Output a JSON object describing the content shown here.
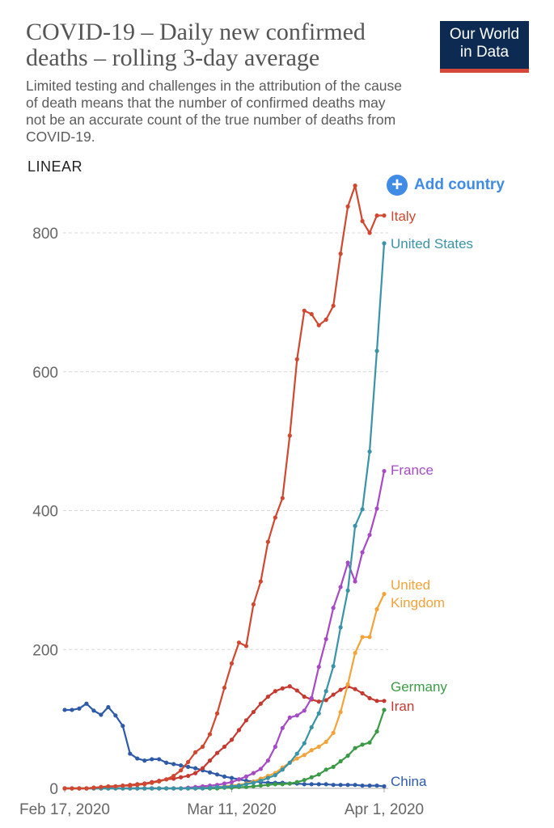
{
  "header": {
    "title": "COVID-19 – Daily new confirmed deaths – rolling 3-day average",
    "subtitle": "Limited testing and challenges in the attribution of the cause of death means that the number of confirmed deaths may not be an accurate count of the true number of deaths from COVID-19.",
    "logo_line1": "Our World",
    "logo_line2": "in Data",
    "scale_label": "LINEAR",
    "add_country": "Add country"
  },
  "colors": {
    "Italy": "#d0482f",
    "United States": "#3a93a6",
    "France": "#a64bc4",
    "United Kingdom": "#f2a33a",
    "Germany": "#3c9a47",
    "Iran": "#c53a30",
    "China": "#2e5aa8"
  },
  "chart_data": {
    "type": "line",
    "title": "COVID-19 – Daily new confirmed deaths – rolling 3-day average",
    "ylabel": "",
    "xlabel": "",
    "ylim": [
      0,
      870
    ],
    "yticks": [
      0,
      200,
      400,
      600,
      800
    ],
    "x_ticks": [
      {
        "index": 0,
        "label": "Feb 17, 2020"
      },
      {
        "index": 23,
        "label": "Mar 11, 2020"
      },
      {
        "index": 44,
        "label": "Apr 1, 2020"
      }
    ],
    "x_count": 45,
    "series": [
      {
        "name": "China",
        "label": [
          "China"
        ],
        "values": [
          113,
          113,
          115,
          122,
          112,
          106,
          117,
          105,
          90,
          50,
          43,
          40,
          42,
          42,
          37,
          35,
          33,
          31,
          29,
          26,
          23,
          20,
          17,
          15,
          13,
          11,
          10,
          9,
          8,
          8,
          8,
          7,
          7,
          6,
          6,
          6,
          6,
          5,
          5,
          5,
          5,
          4,
          4,
          4,
          3
        ]
      },
      {
        "name": "Iran",
        "label": [
          "Iran"
        ],
        "values": [
          0,
          0,
          0,
          0,
          1,
          1,
          2,
          3,
          4,
          5,
          6,
          7,
          9,
          11,
          13,
          14,
          16,
          18,
          22,
          29,
          40,
          51,
          60,
          70,
          84,
          98,
          110,
          122,
          132,
          140,
          144,
          147,
          141,
          132,
          128,
          125,
          127,
          135,
          142,
          147,
          143,
          137,
          130,
          126,
          126
        ]
      },
      {
        "name": "Germany",
        "label": [
          "Germany"
        ],
        "values": [
          0,
          0,
          0,
          0,
          0,
          0,
          0,
          0,
          0,
          0,
          0,
          0,
          0,
          0,
          0,
          0,
          0,
          0,
          0,
          0,
          0,
          0,
          1,
          1,
          2,
          2,
          3,
          4,
          5,
          6,
          6,
          7,
          9,
          12,
          16,
          20,
          27,
          31,
          39,
          47,
          58,
          63,
          66,
          82,
          113
        ]
      },
      {
        "name": "United Kingdom",
        "label": [
          "United",
          "Kingdom"
        ],
        "values": [
          0,
          0,
          0,
          0,
          0,
          0,
          0,
          0,
          0,
          0,
          0,
          0,
          0,
          0,
          0,
          0,
          0,
          0,
          0,
          1,
          1,
          2,
          3,
          4,
          5,
          7,
          10,
          14,
          18,
          22,
          30,
          37,
          43,
          48,
          55,
          60,
          67,
          80,
          110,
          150,
          195,
          218,
          218,
          258,
          280
        ]
      },
      {
        "name": "France",
        "label": [
          "France"
        ],
        "values": [
          0,
          0,
          0,
          0,
          0,
          0,
          0,
          0,
          0,
          0,
          0,
          0,
          0,
          0,
          0,
          0,
          0,
          1,
          2,
          3,
          4,
          5,
          7,
          9,
          13,
          17,
          22,
          28,
          40,
          60,
          87,
          102,
          105,
          112,
          130,
          175,
          215,
          260,
          290,
          325,
          298,
          340,
          365,
          403,
          457
        ]
      },
      {
        "name": "United States",
        "label": [
          "United States"
        ],
        "values": [
          0,
          0,
          0,
          0,
          0,
          0,
          0,
          0,
          0,
          0,
          0,
          0,
          0,
          0,
          0,
          0,
          0,
          0,
          0,
          0,
          1,
          2,
          2,
          3,
          4,
          6,
          8,
          11,
          15,
          19,
          27,
          37,
          50,
          65,
          88,
          108,
          140,
          176,
          232,
          285,
          378,
          402,
          485,
          630,
          785
        ]
      },
      {
        "name": "Italy",
        "label": [
          "Italy"
        ],
        "values": [
          0,
          0,
          0,
          0,
          1,
          2,
          3,
          3,
          4,
          4,
          5,
          6,
          8,
          10,
          13,
          18,
          26,
          38,
          52,
          60,
          78,
          108,
          145,
          180,
          210,
          205,
          265,
          298,
          355,
          390,
          418,
          508,
          618,
          688,
          683,
          667,
          675,
          695,
          770,
          838,
          868,
          817,
          800,
          825,
          825
        ]
      }
    ]
  }
}
